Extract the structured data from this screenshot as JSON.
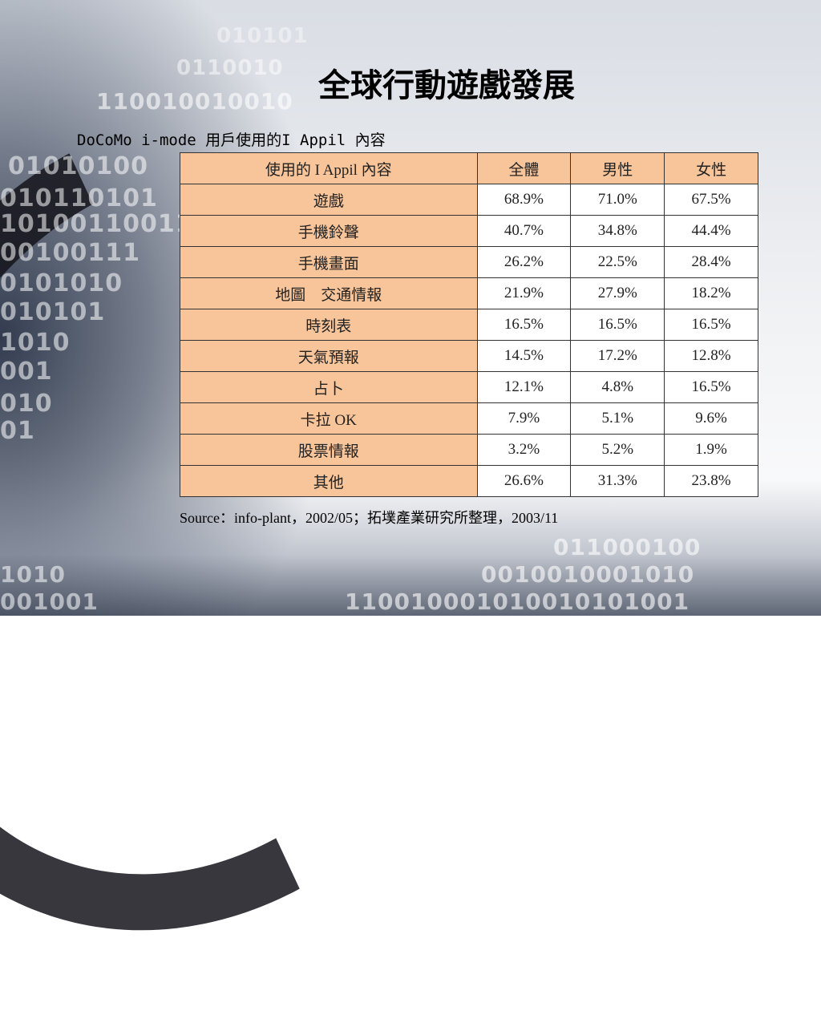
{
  "title": "全球行動遊戲發展",
  "subtitle": "DoCoMo i-mode 用戶使用的I Appil 內容",
  "table": {
    "headers": [
      "使用的 I Appil 內容",
      "全體",
      "男性",
      "女性"
    ],
    "rows": [
      [
        "遊戲",
        "68.9%",
        "71.0%",
        "67.5%"
      ],
      [
        "手機鈴聲",
        "40.7%",
        "34.8%",
        "44.4%"
      ],
      [
        "手機畫面",
        "26.2%",
        "22.5%",
        "28.4%"
      ],
      [
        "地圖　交通情報",
        "21.9%",
        "27.9%",
        "18.2%"
      ],
      [
        "時刻表",
        "16.5%",
        "16.5%",
        "16.5%"
      ],
      [
        "天氣預報",
        "14.5%",
        "17.2%",
        "12.8%"
      ],
      [
        "占卜",
        "12.1%",
        "4.8%",
        "16.5%"
      ],
      [
        "卡拉 OK",
        "7.9%",
        "5.1%",
        "9.6%"
      ],
      [
        "股票情報",
        "3.2%",
        "5.2%",
        "1.9%"
      ],
      [
        "其他",
        "26.6%",
        "31.3%",
        "23.8%"
      ]
    ]
  },
  "source": "Source：info-plant，2002/05；拓墣產業研究所整理，2003/11",
  "colors": {
    "header_fill": "#f8c49a",
    "border": "#333333"
  }
}
